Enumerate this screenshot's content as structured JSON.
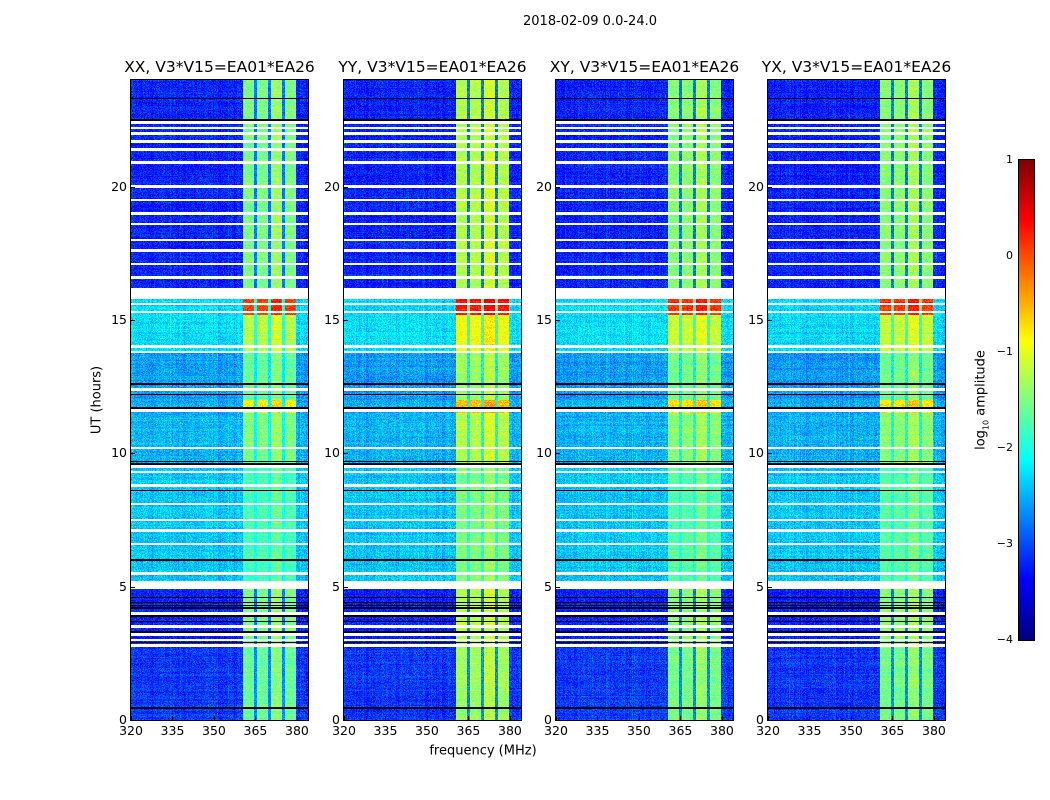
{
  "chart_data": {
    "type": "heatmap",
    "title": "2018-02-09 0.0-24.0",
    "xlabel": "frequency (MHz)",
    "ylabel": "UT (hours)",
    "x_range": [
      320,
      384
    ],
    "y_range": [
      0,
      24
    ],
    "x_ticks": [
      "320",
      "335",
      "350",
      "365",
      "380"
    ],
    "x_tick_values": [
      320,
      335,
      350,
      365,
      380
    ],
    "y_ticks": [
      "0",
      "5",
      "10",
      "15",
      "20"
    ],
    "y_tick_values": [
      0,
      5,
      10,
      15,
      20
    ],
    "colormap": "jet",
    "colorbar": {
      "label_main": "log",
      "label_sub": "10",
      "label_rest": " amplitude",
      "range": [
        -4,
        1
      ],
      "ticks": [
        "−4",
        "−3",
        "−2",
        "−1",
        "0",
        "1"
      ],
      "tick_values": [
        -4,
        -3,
        -2,
        -1,
        0,
        1
      ]
    },
    "panels": [
      {
        "title": "XX, V3*V15=EA01*EA26",
        "band_offset": 0.0,
        "bg_offset": 0.0
      },
      {
        "title": "YY, V3*V15=EA01*EA26",
        "band_offset": 0.25,
        "bg_offset": 0.0
      },
      {
        "title": "XY, V3*V15=EA01*EA26",
        "band_offset": 0.05,
        "bg_offset": 0.0
      },
      {
        "title": "YX, V3*V15=EA01*EA26",
        "band_offset": 0.05,
        "bg_offset": 0.0
      }
    ],
    "band_edges_mhz": [
      360.5,
      365,
      370,
      375,
      379.5
    ],
    "time_segments": [
      {
        "start": 0.0,
        "end": 2.7,
        "background": -3.1,
        "band": -1.6
      },
      {
        "start": 2.7,
        "end": 4.9,
        "background": -3.2,
        "band": -1.5
      },
      {
        "start": 5.2,
        "end": 9.6,
        "background": -2.4,
        "band": -1.75
      },
      {
        "start": 9.6,
        "end": 11.5,
        "background": -2.5,
        "band": -1.5
      },
      {
        "start": 11.5,
        "end": 12.0,
        "background": -2.5,
        "band": -0.8
      },
      {
        "start": 12.0,
        "end": 13.8,
        "background": -2.6,
        "band": -1.6
      },
      {
        "start": 13.8,
        "end": 15.2,
        "background": -2.3,
        "band": -1.2
      },
      {
        "start": 15.2,
        "end": 15.8,
        "background": -2.3,
        "band": 0.05
      },
      {
        "start": 16.2,
        "end": 24.0,
        "background": -3.2,
        "band": -1.5
      }
    ],
    "flagged_ranges_hours": [
      [
        4.9,
        5.2
      ],
      [
        15.8,
        16.2
      ]
    ],
    "flagged_hours": [
      22.4,
      22.2,
      22.0,
      21.7,
      21.4,
      20.9,
      20.0,
      19.5,
      19.0,
      18.6,
      18.0,
      17.6,
      17.1,
      16.6,
      15.6,
      15.3,
      14.0,
      13.8,
      12.4,
      11.6,
      10.2,
      9.5,
      9.3,
      8.8,
      8.1,
      7.5,
      7.1,
      6.6,
      5.5,
      4.0,
      3.5,
      3.2,
      3.0,
      2.8
    ],
    "zero_hours": [
      23.3,
      22.5,
      12.6,
      12.2,
      11.7,
      9.7,
      9.6,
      8.6,
      6.0,
      4.6,
      4.4,
      4.3,
      4.2,
      3.9,
      3.7,
      3.3,
      2.9,
      0.45
    ]
  }
}
